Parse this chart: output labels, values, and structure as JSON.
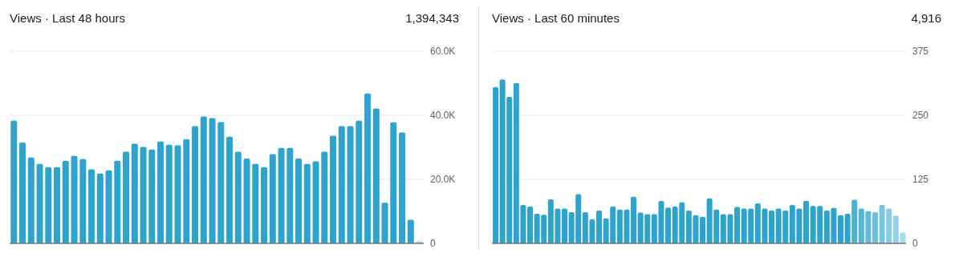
{
  "chart_data": [
    {
      "type": "bar",
      "title": "Views · Last 48 hours",
      "subtitle": "1,394,343",
      "categories": [
        null,
        null,
        null,
        null,
        null,
        null,
        null,
        null,
        null,
        null,
        null,
        null,
        null,
        null,
        null,
        null,
        null,
        null,
        null,
        null,
        null,
        null,
        null,
        null,
        null,
        null,
        null,
        null,
        null,
        null,
        null,
        null,
        null,
        null,
        null,
        null,
        null,
        null,
        null,
        null,
        null,
        null,
        null,
        null,
        null,
        null,
        null,
        null
      ],
      "values": [
        38300,
        31500,
        26800,
        24800,
        23800,
        23800,
        25800,
        27300,
        26300,
        23100,
        21800,
        22800,
        25800,
        28600,
        31100,
        30100,
        29300,
        31800,
        30800,
        30600,
        32500,
        36600,
        39600,
        39100,
        37900,
        33300,
        28600,
        26500,
        24800,
        23800,
        27900,
        29800,
        29800,
        26500,
        24800,
        25600,
        28600,
        33600,
        36600,
        36600,
        38300,
        46800,
        42100,
        12700,
        37800,
        34600,
        7400,
        700
      ],
      "colors": [
        "#2ea3cd",
        "#2ea3cd",
        "#2ea3cd",
        "#2ea3cd",
        "#2ea3cd",
        "#2ea3cd",
        "#2ea3cd",
        "#2ea3cd",
        "#2ea3cd",
        "#2ea3cd",
        "#2ea3cd",
        "#2ea3cd",
        "#2ea3cd",
        "#2ea3cd",
        "#2ea3cd",
        "#2ea3cd",
        "#2ea3cd",
        "#2ea3cd",
        "#2ea3cd",
        "#2ea3cd",
        "#2ea3cd",
        "#2ea3cd",
        "#2ea3cd",
        "#2ea3cd",
        "#2ea3cd",
        "#2ea3cd",
        "#2ea3cd",
        "#2ea3cd",
        "#2ea3cd",
        "#2ea3cd",
        "#2ea3cd",
        "#2ea3cd",
        "#2ea3cd",
        "#2ea3cd",
        "#2ea3cd",
        "#2ea3cd",
        "#2ea3cd",
        "#2ea3cd",
        "#2ea3cd",
        "#2ea3cd",
        "#2ea3cd",
        "#2ea3cd",
        "#2ea3cd",
        "#2ea3cd",
        "#2ea3cd",
        "#2ea3cd",
        "#2ea3cd",
        "#a8d8ea"
      ],
      "ylim": [
        0,
        60000
      ],
      "yticks": [
        {
          "value": 0,
          "label": "0"
        },
        {
          "value": 20000,
          "label": "20.0K"
        },
        {
          "value": 40000,
          "label": "40.0K"
        },
        {
          "value": 60000,
          "label": "60.0K"
        }
      ],
      "grid": "y",
      "tick_labels": "y"
    },
    {
      "type": "bar",
      "title": "Views · Last 60 minutes",
      "subtitle": "4,916",
      "categories": [
        null,
        null,
        null,
        null,
        null,
        null,
        null,
        null,
        null,
        null,
        null,
        null,
        null,
        null,
        null,
        null,
        null,
        null,
        null,
        null,
        null,
        null,
        null,
        null,
        null,
        null,
        null,
        null,
        null,
        null,
        null,
        null,
        null,
        null,
        null,
        null,
        null,
        null,
        null,
        null,
        null,
        null,
        null,
        null,
        null,
        null,
        null,
        null,
        null,
        null,
        null,
        null,
        null,
        null,
        null,
        null,
        null,
        null,
        null,
        null
      ],
      "values": [
        305,
        320,
        286,
        313,
        75,
        72,
        58,
        56,
        86,
        68,
        68,
        61,
        96,
        61,
        47,
        64,
        49,
        72,
        66,
        66,
        91,
        60,
        57,
        57,
        83,
        70,
        72,
        80,
        64,
        55,
        52,
        88,
        66,
        57,
        57,
        71,
        68,
        68,
        78,
        68,
        64,
        68,
        64,
        75,
        68,
        83,
        73,
        73,
        64,
        69,
        55,
        58,
        85,
        68,
        63,
        61,
        75,
        68,
        54,
        21
      ],
      "colors": [
        "#2ea3cd",
        "#2ea3cd",
        "#2ea3cd",
        "#2ea3cd",
        "#2ea3cd",
        "#2ea3cd",
        "#2ea3cd",
        "#2ea3cd",
        "#2ea3cd",
        "#2ea3cd",
        "#2ea3cd",
        "#2ea3cd",
        "#2ea3cd",
        "#2ea3cd",
        "#2ea3cd",
        "#2ea3cd",
        "#2ea3cd",
        "#2ea3cd",
        "#2ea3cd",
        "#2ea3cd",
        "#2ea3cd",
        "#2ea3cd",
        "#2ea3cd",
        "#2ea3cd",
        "#2ea3cd",
        "#2ea3cd",
        "#2ea3cd",
        "#2ea3cd",
        "#2ea3cd",
        "#2ea3cd",
        "#2ea3cd",
        "#2ea3cd",
        "#2ea3cd",
        "#2ea3cd",
        "#2ea3cd",
        "#2ea3cd",
        "#2ea3cd",
        "#2ea3cd",
        "#2ea3cd",
        "#2ea3cd",
        "#2ea3cd",
        "#2ea3cd",
        "#2ea3cd",
        "#2ea3cd",
        "#2ea3cd",
        "#2ea3cd",
        "#2ea3cd",
        "#2ea3cd",
        "#2ea3cd",
        "#2ea3cd",
        "#2ea3cd",
        "#2ea3cd",
        "#4ab0d6",
        "#55b5d8",
        "#5fbadb",
        "#6bbfde",
        "#7ac6e1",
        "#86cce4",
        "#93d1e7",
        "#a8dbec"
      ],
      "ylim": [
        0,
        375
      ],
      "yticks": [
        0,
        125,
        250,
        375
      ],
      "grid": "y",
      "tick_labels": "y"
    }
  ]
}
